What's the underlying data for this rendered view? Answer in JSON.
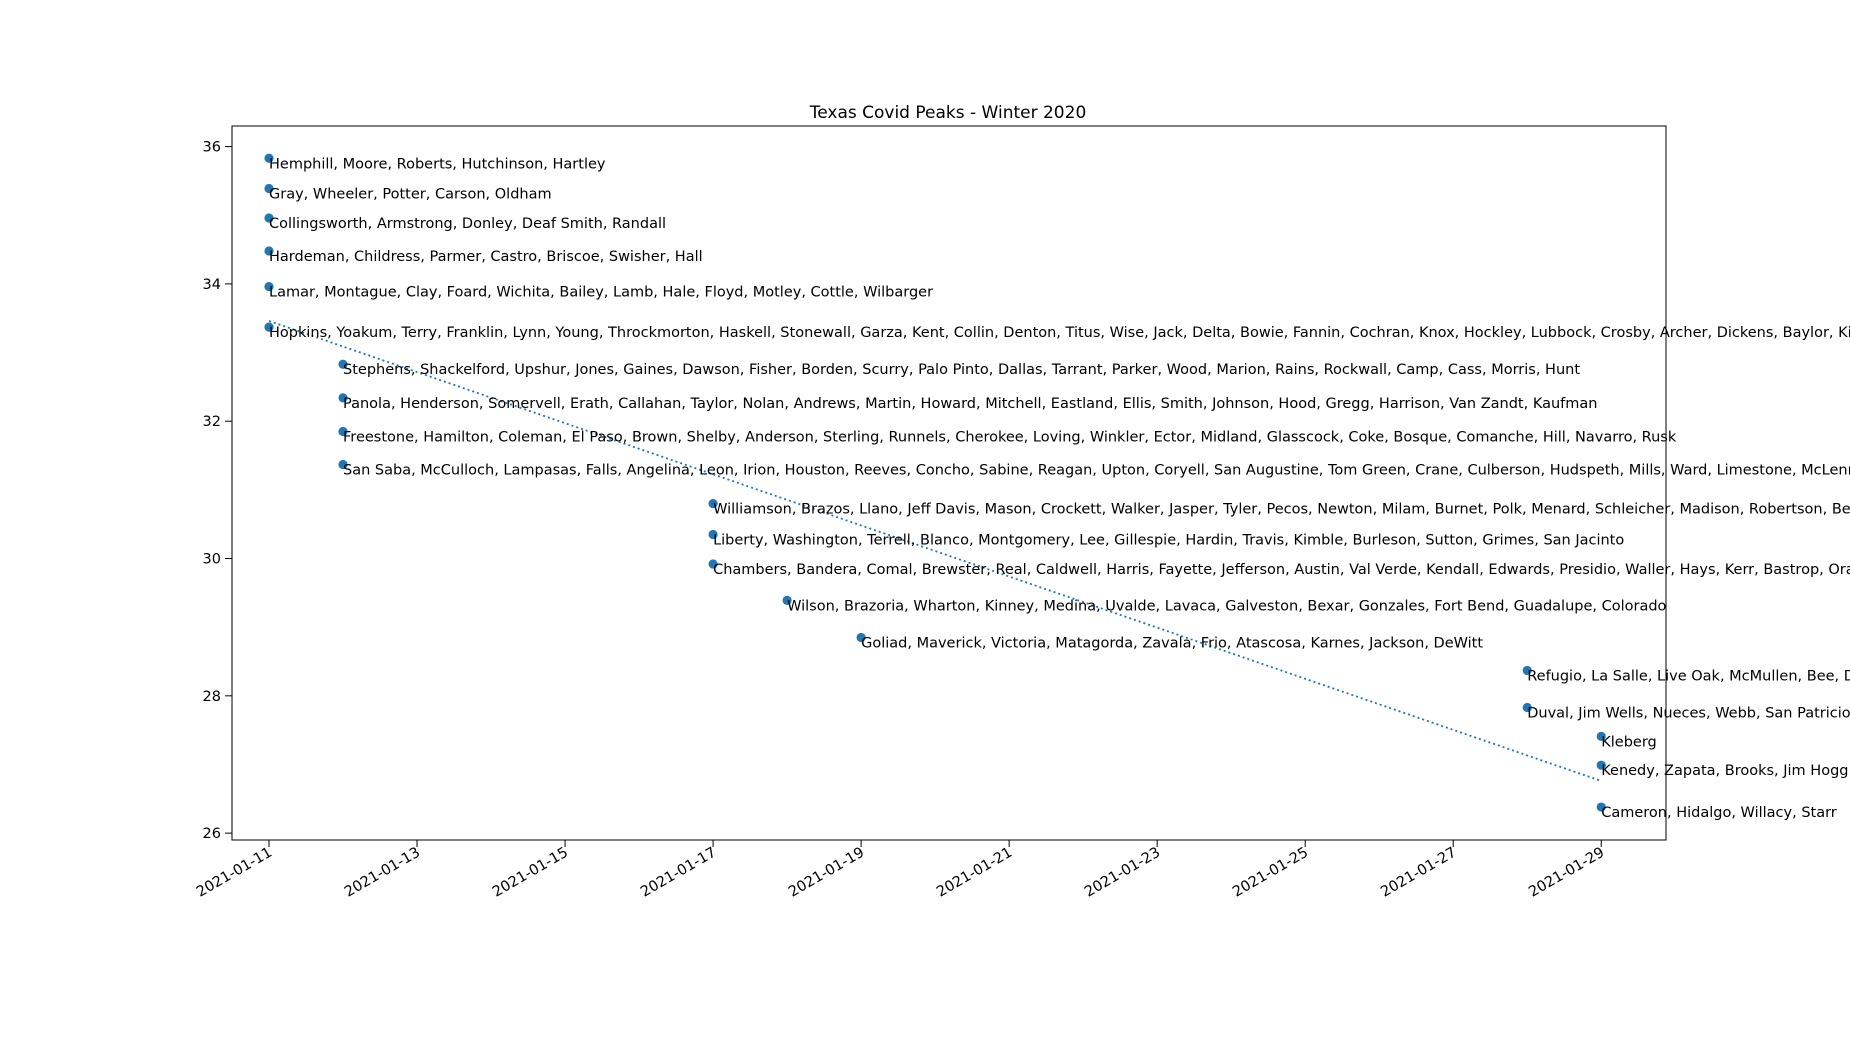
{
  "chart_data": {
    "type": "scatter",
    "title": "Texas Covid Peaks - Winter 2020",
    "xlabel": "",
    "ylabel": "",
    "x_type": "date",
    "xlim": [
      "2021-01-10T12:00",
      "2021-01-29T21:00"
    ],
    "ylim": [
      25.9,
      36.3
    ],
    "x_ticks": [
      "2021-01-11",
      "2021-01-13",
      "2021-01-15",
      "2021-01-17",
      "2021-01-19",
      "2021-01-21",
      "2021-01-23",
      "2021-01-25",
      "2021-01-27",
      "2021-01-29"
    ],
    "y_ticks": [
      26,
      28,
      30,
      32,
      34,
      36
    ],
    "grid": false,
    "point_color": "#1f77b4",
    "points": [
      {
        "x": "2021-01-11",
        "y": 35.83,
        "label": "Hemphill, Moore, Roberts, Hutchinson, Hartley"
      },
      {
        "x": "2021-01-11",
        "y": 35.39,
        "label": "Gray, Wheeler, Potter, Carson, Oldham"
      },
      {
        "x": "2021-01-11",
        "y": 34.96,
        "label": "Collingsworth, Armstrong, Donley, Deaf Smith, Randall"
      },
      {
        "x": "2021-01-11",
        "y": 34.48,
        "label": "Hardeman, Childress, Parmer, Castro, Briscoe, Swisher, Hall"
      },
      {
        "x": "2021-01-11",
        "y": 33.96,
        "label": "Lamar, Montague, Clay, Foard, Wichita, Bailey, Lamb, Hale, Floyd, Motley, Cottle, Wilbarger"
      },
      {
        "x": "2021-01-11",
        "y": 33.37,
        "label": "Hopkins, Yoakum, Terry, Franklin, Lynn, Young, Throckmorton, Haskell, Stonewall, Garza, Kent, Collin, Denton, Titus, Wise, Jack, Delta, Bowie, Fannin, Cochran, Knox, Hockley, Lubbock, Crosby, Archer, Dickens, Baylor, King, Red River, Grayson"
      },
      {
        "x": "2021-01-12",
        "y": 32.83,
        "label": "Stephens, Shackelford, Upshur, Jones, Gaines, Dawson, Fisher, Borden, Scurry, Palo Pinto, Dallas, Tarrant, Parker, Wood, Marion, Rains, Rockwall, Camp, Cass, Morris, Hunt"
      },
      {
        "x": "2021-01-12",
        "y": 32.34,
        "label": "Panola, Henderson, Somervell, Erath, Callahan, Taylor, Nolan, Andrews, Martin, Howard, Mitchell, Eastland, Ellis, Smith, Johnson, Hood, Gregg, Harrison, Van Zandt, Kaufman"
      },
      {
        "x": "2021-01-12",
        "y": 31.85,
        "label": "Freestone, Hamilton, Coleman, El Paso, Brown, Shelby, Anderson, Sterling, Runnels, Cherokee, Loving, Winkler, Ector, Midland, Glasscock, Coke, Bosque, Comanche, Hill, Navarro, Rusk"
      },
      {
        "x": "2021-01-12",
        "y": 31.37,
        "label": "San Saba, McCulloch, Lampasas, Falls, Angelina, Leon, Irion, Houston, Reeves, Concho, Sabine, Reagan, Upton, Coryell, San Augustine, Tom Green, Crane, Culberson, Hudspeth, Mills, Ward, Limestone, McLennan, Nacogdoches"
      },
      {
        "x": "2021-01-17",
        "y": 30.8,
        "label": "Williamson, Brazos, Llano, Jeff Davis, Mason, Crockett, Walker, Jasper, Tyler, Pecos, Newton, Milam, Burnet, Polk, Menard, Schleicher, Madison, Robertson, Bell, Trinity"
      },
      {
        "x": "2021-01-17",
        "y": 30.35,
        "label": "Liberty, Washington, Terrell, Blanco, Montgomery, Lee, Gillespie, Hardin, Travis, Kimble, Burleson, Sutton, Grimes, San Jacinto"
      },
      {
        "x": "2021-01-17",
        "y": 29.92,
        "label": "Chambers, Bandera, Comal, Brewster, Real, Caldwell, Harris, Fayette, Jefferson, Austin, Val Verde, Kendall, Edwards, Presidio, Waller, Hays, Kerr, Bastrop, Orange"
      },
      {
        "x": "2021-01-18",
        "y": 29.39,
        "label": "Wilson, Brazoria, Wharton, Kinney, Medina, Uvalde, Lavaca, Galveston, Bexar, Gonzales, Fort Bend, Guadalupe, Colorado"
      },
      {
        "x": "2021-01-19",
        "y": 28.85,
        "label": "Goliad, Maverick, Victoria, Matagorda, Zavala, Frio, Atascosa, Karnes, Jackson, DeWitt"
      },
      {
        "x": "2021-01-28",
        "y": 28.37,
        "label": "Refugio, La Salle, Live Oak, McMullen, Bee, Dimmit"
      },
      {
        "x": "2021-01-28",
        "y": 27.83,
        "label": "Duval, Jim Wells, Nueces, Webb, San Patricio, Aransas"
      },
      {
        "x": "2021-01-29",
        "y": 27.41,
        "label": "Kleberg"
      },
      {
        "x": "2021-01-29",
        "y": 26.99,
        "label": "Kenedy, Zapata, Brooks, Jim Hogg"
      },
      {
        "x": "2021-01-29",
        "y": 26.38,
        "label": "Cameron, Hidalgo, Willacy, Starr"
      }
    ],
    "trendline": {
      "style": "dotted",
      "color": "#1f77b4",
      "start": {
        "x": "2021-01-11",
        "y": 33.46
      },
      "end": {
        "x": "2021-01-29",
        "y": 26.76
      }
    }
  }
}
